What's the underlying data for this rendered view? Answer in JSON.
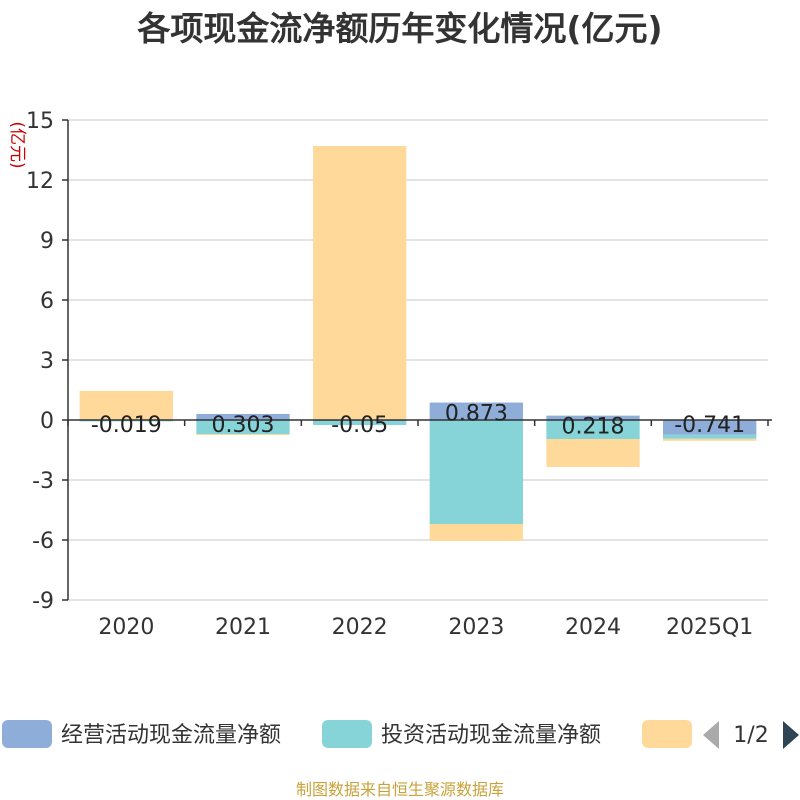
{
  "title": "各项现金流净额历年变化情况(亿元)",
  "footer": "制图数据来自恒生聚源数据库",
  "chart_data": {
    "type": "bar",
    "stacked": true,
    "categories": [
      "2020",
      "2021",
      "2022",
      "2023",
      "2024",
      "2025Q1"
    ],
    "ylabel": "(亿元)",
    "ylim": [
      -9,
      15
    ],
    "yticks": [
      15,
      12,
      9,
      6,
      3,
      0,
      -3,
      -6,
      -9
    ],
    "grid": true,
    "legend_position": "bottom",
    "series": [
      {
        "name": "经营活动现金流量净额",
        "color": "#8eadd9",
        "values": [
          -0.019,
          0.303,
          -0.05,
          0.873,
          0.218,
          -0.741
        ]
      },
      {
        "name": "投资活动现金流量净额",
        "color": "#86d4d8",
        "values": [
          -0.05,
          -0.7,
          -0.2,
          -5.2,
          -0.95,
          -0.2
        ]
      },
      {
        "name": "",
        "color": "#ffd99a",
        "values": [
          1.45,
          -0.05,
          13.7,
          -0.85,
          -1.4,
          -0.1
        ]
      }
    ],
    "data_labels": [
      "-0.019",
      "0.303",
      "-0.05",
      "0.873",
      "0.218",
      "-0.741"
    ],
    "legend_page": "1/2"
  }
}
